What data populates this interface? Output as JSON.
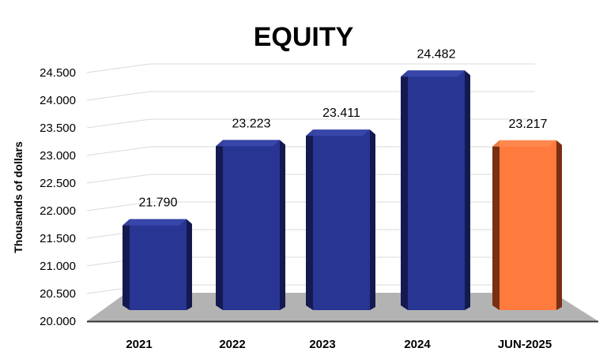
{
  "chart_data": {
    "type": "bar",
    "title": "EQUITY",
    "ylabel": "Thousands of dollars",
    "xlabel": "",
    "categories": [
      "2021",
      "2022",
      "2023",
      "2024",
      "JUN-2025"
    ],
    "values": [
      21790,
      23223,
      23411,
      24482,
      23217
    ],
    "data_labels": [
      "21.790",
      "23.223",
      "23.411",
      "24.482",
      "23.217"
    ],
    "yticks": [
      "20.000",
      "20.500",
      "21.000",
      "21.500",
      "22.000",
      "22.500",
      "23.000",
      "23.500",
      "24.000",
      "24.500"
    ],
    "ylim": [
      20000,
      24500
    ],
    "grid": true,
    "style": "3d-column",
    "colors": {
      "default_front": "#283593",
      "default_top": "#3949ab",
      "default_side": "#141a4f",
      "highlight_front": "#ff7a3d",
      "highlight_top": "#ff8a50",
      "highlight_side": "#7a2e12",
      "floor": "#b3b3b3",
      "grid": "#d9d9d9"
    },
    "highlight_index": 4
  }
}
